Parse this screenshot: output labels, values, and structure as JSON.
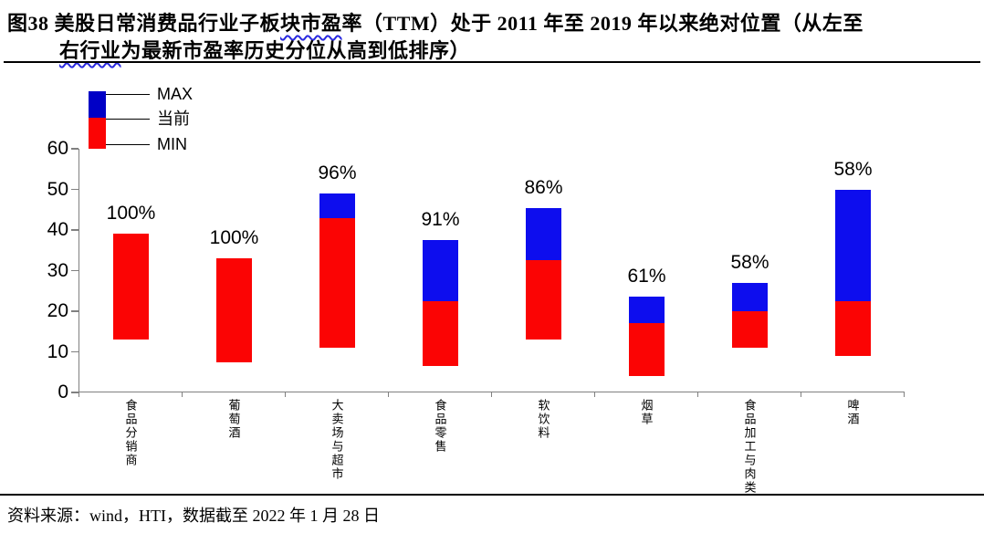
{
  "figure": {
    "title_line1_pre": "图38 美股日常消费品行业子板",
    "title_line1_wavy": "块市盈",
    "title_line1_post": "率（TTM）处于 2011 年至 2019 年以来绝对位置（从左至",
    "title_line2_wavy": "右行业",
    "title_line2_post": "为最新市盈率历史分位从高到低排序）",
    "source": "资料来源：wind，HTI，数据截至 2022 年 1 月 28 日"
  },
  "legend": {
    "max_label": "MAX",
    "current_label": "当前",
    "min_label": "MIN"
  },
  "colors": {
    "red": "#fb0404",
    "bar_blue": "#0d0dee",
    "legend_blue": "#0000c6",
    "axis": "#808080",
    "text": "#000000"
  },
  "chart_data": {
    "type": "bar",
    "title": "美股日常消费品行业子板块市盈率（TTM）处于2011年至2019年以来绝对位置（从左至右行业为最新市盈率历史分位从高到低排序）",
    "categories": [
      "食品分销商",
      "葡萄酒",
      "大卖场与超市",
      "食品零售",
      "软饮料",
      "烟草",
      "食品加工与肉类",
      "啤酒"
    ],
    "series": [
      {
        "name": "MIN",
        "values": [
          13,
          7.5,
          11,
          6.5,
          13,
          4,
          11,
          9
        ]
      },
      {
        "name": "当前",
        "values": [
          39,
          33,
          43,
          22.5,
          32.5,
          17,
          20,
          22.5
        ]
      },
      {
        "name": "MAX",
        "values": [
          39,
          33,
          49,
          37.5,
          45.5,
          23.5,
          27,
          50
        ]
      }
    ],
    "bar_labels": [
      "100%",
      "100%",
      "96%",
      "91%",
      "86%",
      "61%",
      "58%",
      "58%"
    ],
    "xlabel": "",
    "ylabel": "",
    "ylim": [
      0,
      60
    ],
    "yticks": [
      0,
      10,
      20,
      30,
      40,
      50,
      60
    ],
    "grid": false,
    "legend_position": "top-left"
  }
}
